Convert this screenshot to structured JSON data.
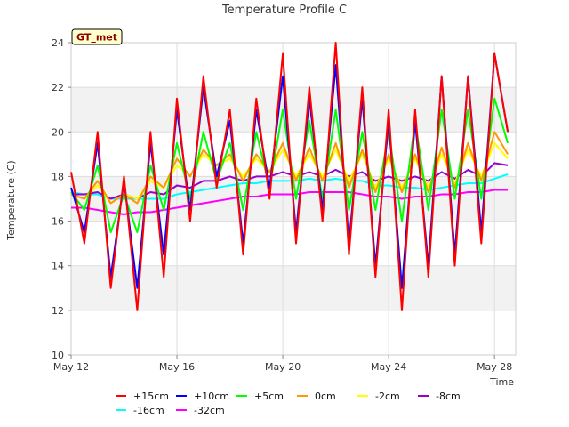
{
  "chart_data": {
    "type": "line",
    "title": "Temperature Profile C",
    "xlabel": "Time",
    "ylabel": "Temperature (C)",
    "site_badge": "GT_met",
    "ylim": [
      10,
      24
    ],
    "y_ticks": [
      10,
      12,
      14,
      16,
      18,
      20,
      22,
      24
    ],
    "xlim": [
      0,
      16.8
    ],
    "x_ticks": [
      {
        "x": 0,
        "label": "May 12"
      },
      {
        "x": 4,
        "label": "May 16"
      },
      {
        "x": 8,
        "label": "May 20"
      },
      {
        "x": 12,
        "label": "May 24"
      },
      {
        "x": 16,
        "label": "May 28"
      }
    ],
    "grid": true,
    "legend_placement": "bottom",
    "x": [
      0,
      0.5,
      1,
      1.5,
      2,
      2.5,
      3,
      3.5,
      4,
      4.5,
      5,
      5.5,
      6,
      6.5,
      7,
      7.5,
      8,
      8.5,
      9,
      9.5,
      10,
      10.5,
      11,
      11.5,
      12,
      12.5,
      13,
      13.5,
      14,
      14.5,
      15,
      15.5,
      16,
      16.5
    ],
    "series": [
      {
        "name": "+15cm",
        "color": "#ff0000",
        "values": [
          18.2,
          15,
          20,
          13,
          18,
          12,
          20,
          13.5,
          21.5,
          16,
          22.5,
          17.5,
          21,
          14.5,
          21.5,
          17,
          23.5,
          15,
          22,
          16,
          24,
          14.5,
          22,
          13.5,
          21,
          12,
          21,
          13.5,
          22.5,
          14,
          22.5,
          15,
          23.5,
          20
        ]
      },
      {
        "name": "+10cm",
        "color": "#0000ff",
        "values": [
          17.5,
          15.5,
          19.5,
          13.5,
          17.8,
          13,
          19.5,
          14.5,
          21,
          16.5,
          22,
          18,
          20.5,
          15,
          21,
          17.5,
          22.5,
          15.5,
          21.5,
          16.5,
          23,
          15,
          21.5,
          14,
          20.5,
          13,
          20.5,
          14,
          22.5,
          14.5,
          22.5,
          15.5,
          23.5,
          20
        ]
      },
      {
        "name": "+5cm",
        "color": "#00ff00",
        "values": [
          17.3,
          16.5,
          18.5,
          15.5,
          17.2,
          15.5,
          18.5,
          16.5,
          19.5,
          17,
          20,
          17.8,
          19.5,
          16.5,
          20,
          17.5,
          21,
          17,
          20.5,
          17,
          21,
          16.5,
          20,
          16.5,
          20,
          16,
          20.5,
          16.5,
          21,
          17,
          21,
          17,
          21.5,
          19.5
        ]
      },
      {
        "name": "0cm",
        "color": "#ff9900",
        "values": [
          17.2,
          17,
          17.8,
          16.8,
          17.2,
          16.8,
          18,
          17.5,
          18.8,
          18,
          19.2,
          18.5,
          19,
          17.8,
          19,
          18.2,
          19.5,
          17.8,
          19.3,
          17.8,
          19.5,
          17.5,
          19.2,
          17.3,
          19,
          17.3,
          19,
          17.3,
          19.3,
          17.5,
          19.5,
          17.8,
          20,
          19
        ]
      },
      {
        "name": "-2cm",
        "color": "#ffff00",
        "values": [
          17.2,
          17,
          17.6,
          16.8,
          17.2,
          17,
          17.8,
          17.5,
          18.5,
          18,
          19,
          18.5,
          18.8,
          18,
          18.8,
          18.2,
          19.2,
          18,
          19,
          18,
          19.2,
          17.8,
          19,
          17.5,
          18.8,
          17.5,
          18.8,
          17.5,
          19,
          17.7,
          19.2,
          18,
          19.5,
          18.8
        ]
      },
      {
        "name": "-8cm",
        "color": "#9900cc",
        "values": [
          17.2,
          17.2,
          17.3,
          17,
          17.2,
          17,
          17.3,
          17.2,
          17.6,
          17.5,
          17.8,
          17.8,
          18,
          17.8,
          18,
          18,
          18.2,
          18,
          18.2,
          18,
          18.3,
          18,
          18.2,
          17.8,
          18,
          17.8,
          18,
          17.8,
          18.2,
          17.9,
          18.3,
          18,
          18.6,
          18.5
        ]
      },
      {
        "name": "-16cm",
        "color": "#00ffff",
        "values": [
          17.3,
          17.2,
          17.2,
          17,
          17,
          17,
          17,
          17,
          17.2,
          17.3,
          17.4,
          17.5,
          17.6,
          17.7,
          17.7,
          17.8,
          17.8,
          17.8,
          17.9,
          17.8,
          17.9,
          17.8,
          17.8,
          17.6,
          17.6,
          17.5,
          17.5,
          17.4,
          17.5,
          17.6,
          17.7,
          17.7,
          17.9,
          18.1
        ]
      },
      {
        "name": "-32cm",
        "color": "#ff00ff",
        "values": [
          16.6,
          16.6,
          16.5,
          16.4,
          16.3,
          16.4,
          16.4,
          16.5,
          16.6,
          16.7,
          16.8,
          16.9,
          17,
          17.1,
          17.1,
          17.2,
          17.2,
          17.2,
          17.3,
          17.3,
          17.3,
          17.3,
          17.2,
          17.1,
          17.1,
          17,
          17.1,
          17.1,
          17.2,
          17.2,
          17.3,
          17.3,
          17.4,
          17.4
        ]
      }
    ]
  }
}
